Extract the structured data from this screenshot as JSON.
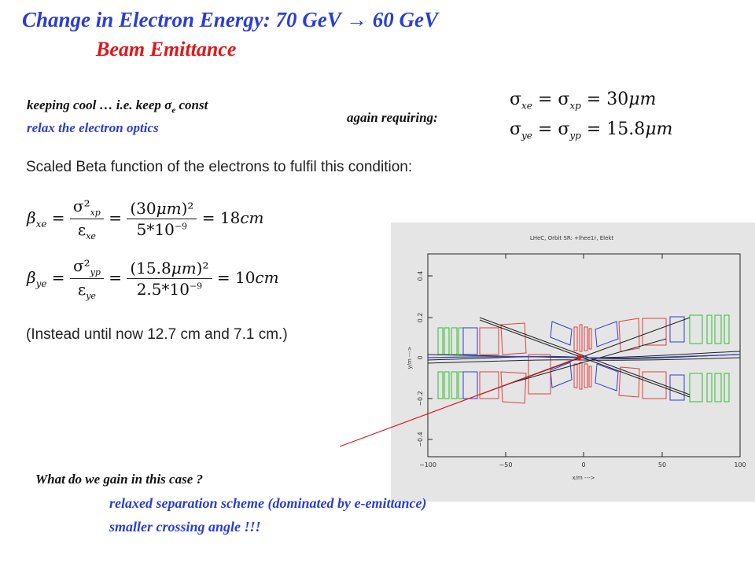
{
  "title": {
    "line1": "Change in Electron Energy: 70 GeV ",
    "arrow": "→",
    "line1_end": " 60 GeV",
    "line2": "Beam Emittance"
  },
  "intro": {
    "keeping_cool": "keeping cool … i.e. keep σ",
    "sigma_sub": "e",
    "keeping_cool_end": " const",
    "relax": "relax the electron optics",
    "again_requiring": "again requiring:"
  },
  "equations_right": {
    "line1": "σxe = σxp = 30μm",
    "line2": "σye = σyp = 15.8μm"
  },
  "scaled_beta_text": "Scaled Beta function of the electrons to fulfil this condition:",
  "beta_x": {
    "lhs": "βxe",
    "num": "σ²xp",
    "den": "εxe",
    "num2": "(30μm)²",
    "den2": "5*10⁻⁹",
    "result": "= 18cm"
  },
  "beta_y": {
    "lhs": "βye",
    "num": "σ²yp",
    "den": "εye",
    "num2": "(15.8μm)²",
    "den2": "2.5*10⁻⁹",
    "result": "= 10cm"
  },
  "instead_text": "(Instead until now  12.7 cm and 7.1 cm.)",
  "plot": {
    "title": "LHeC, Orbit SR: +lhee1r, Elekt",
    "xlabel": "x/m  --->",
    "ylabel": "y/m  --->",
    "xticks": [
      "−100",
      "−50",
      "0",
      "50",
      "100"
    ],
    "yticks": [
      "0.4",
      "0.2",
      "0",
      "−0.2",
      "−0.4"
    ]
  },
  "gain": {
    "question": "What do we gain in this case ?",
    "point1": "relaxed separation scheme (dominated by e-emittance)",
    "point2": "smaller crossing angle  !!!"
  },
  "colors": {
    "title_blue": "#2a3dd6",
    "title_red": "#e0161b",
    "magnet_red": "#e04040",
    "magnet_blue": "#3040d0",
    "magnet_green": "#30c030"
  }
}
